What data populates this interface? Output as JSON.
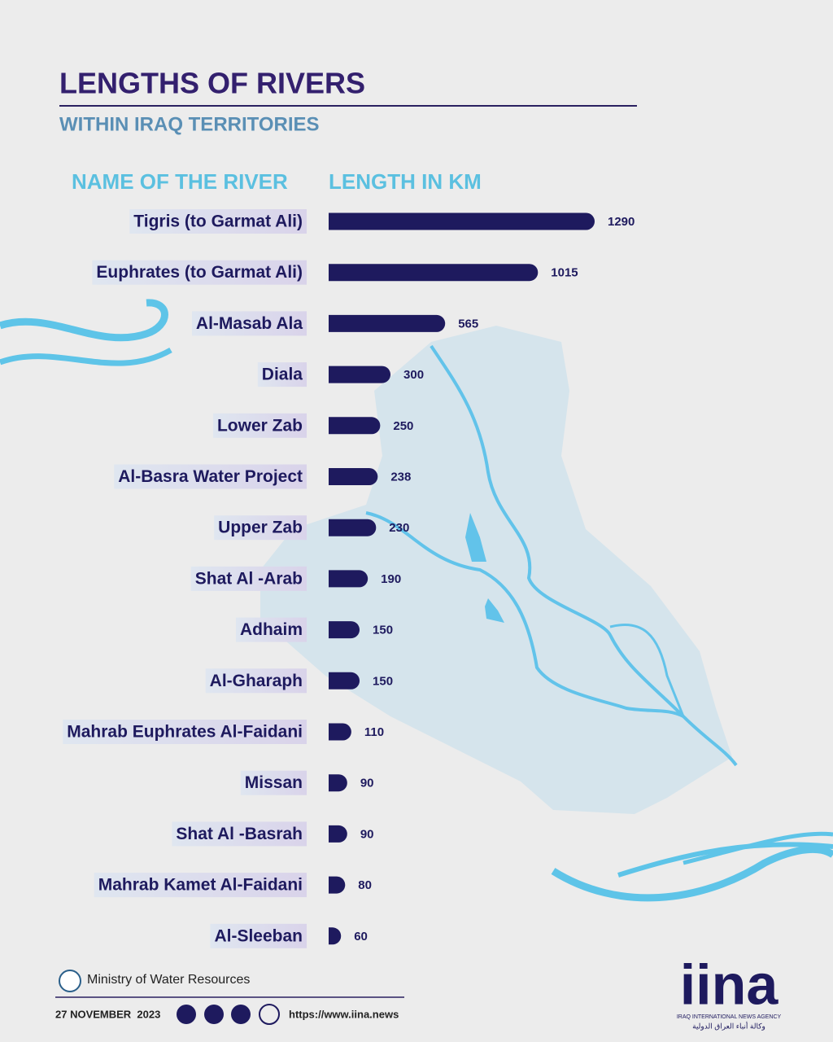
{
  "chart_data": {
    "type": "bar",
    "orientation": "horizontal",
    "title": "LENGTHS OF RIVERS",
    "subtitle": "WITHIN IRAQ TERRITORIES",
    "category_header": "NAME OF THE RIVER",
    "value_header": "LENGTH IN KM",
    "categories": [
      "Tigris (to Garmat Ali)",
      "Euphrates (to Garmat Ali)",
      "Al-Masab Ala",
      "Diala",
      "Lower Zab",
      "Al-Basra Water Project",
      "Upper Zab",
      "Shat Al -Arab",
      "Adhaim",
      "Al-Gharaph",
      "Mahrab Euphrates Al-Faidani",
      "Missan",
      "Shat Al -Basrah",
      "Mahrab Kamet Al-Faidani",
      "Al-Sleeban"
    ],
    "values": [
      1290,
      1015,
      565,
      300,
      250,
      238,
      230,
      190,
      150,
      150,
      110,
      90,
      90,
      80,
      60
    ],
    "color": "#1e1a5e"
  },
  "footer": {
    "source": "Ministry of Water Resources",
    "date": "27 NOVEMBER  2023",
    "url": "https://www.iina.news",
    "logo": "iina",
    "agency": "IRAQ INTERNATIONAL NEWS AGENCY",
    "agency_arabic": "وكالة أنباء العراق الدولية"
  }
}
